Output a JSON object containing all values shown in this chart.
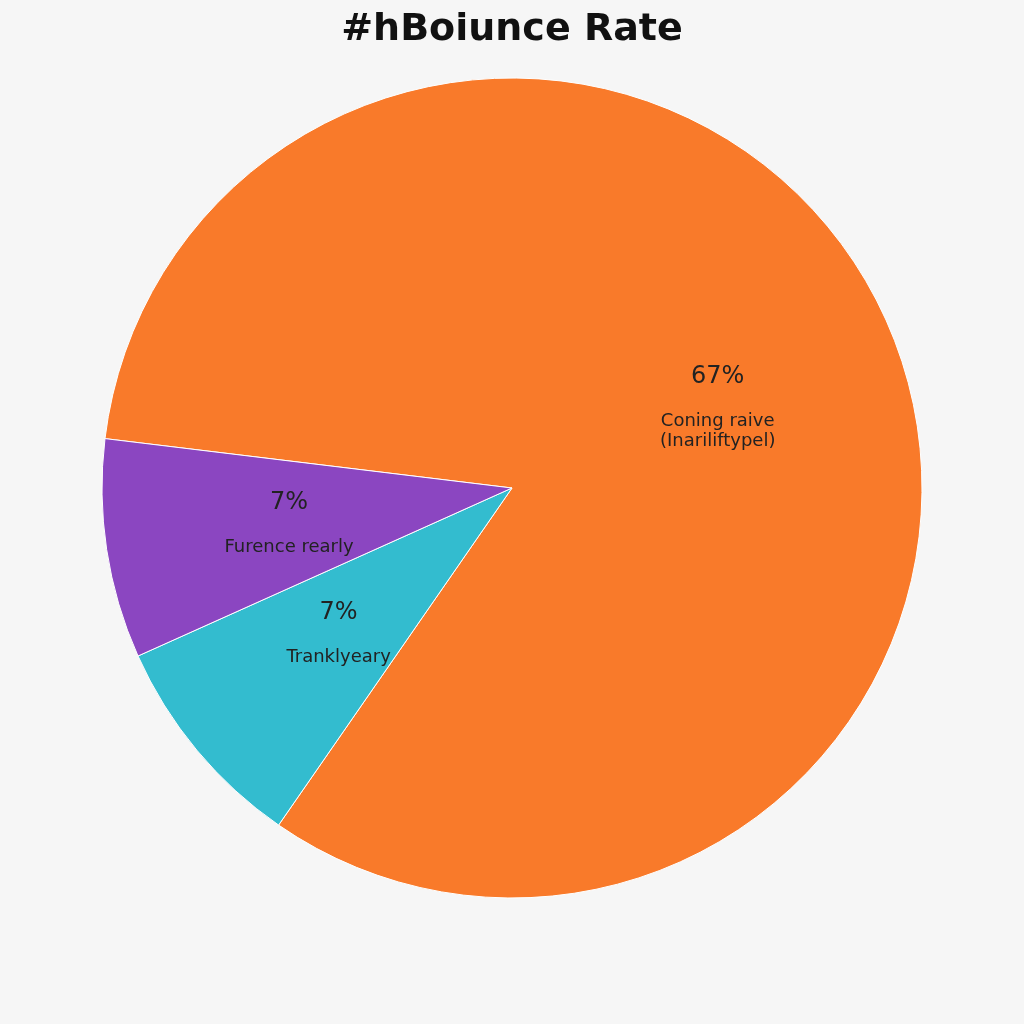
{
  "chart_data": {
    "type": "pie",
    "title": "#hBoiunce Rate",
    "categories": [
      "Coning raive\n(Inariliftypel)",
      "Tranklyeary",
      "Furence rearly"
    ],
    "values": [
      67,
      7,
      7
    ],
    "value_labels": [
      "67%",
      "7%",
      "7%"
    ],
    "colors": [
      "#f97a2a",
      "#33bccf",
      "#8b46c1"
    ],
    "legend": false
  }
}
